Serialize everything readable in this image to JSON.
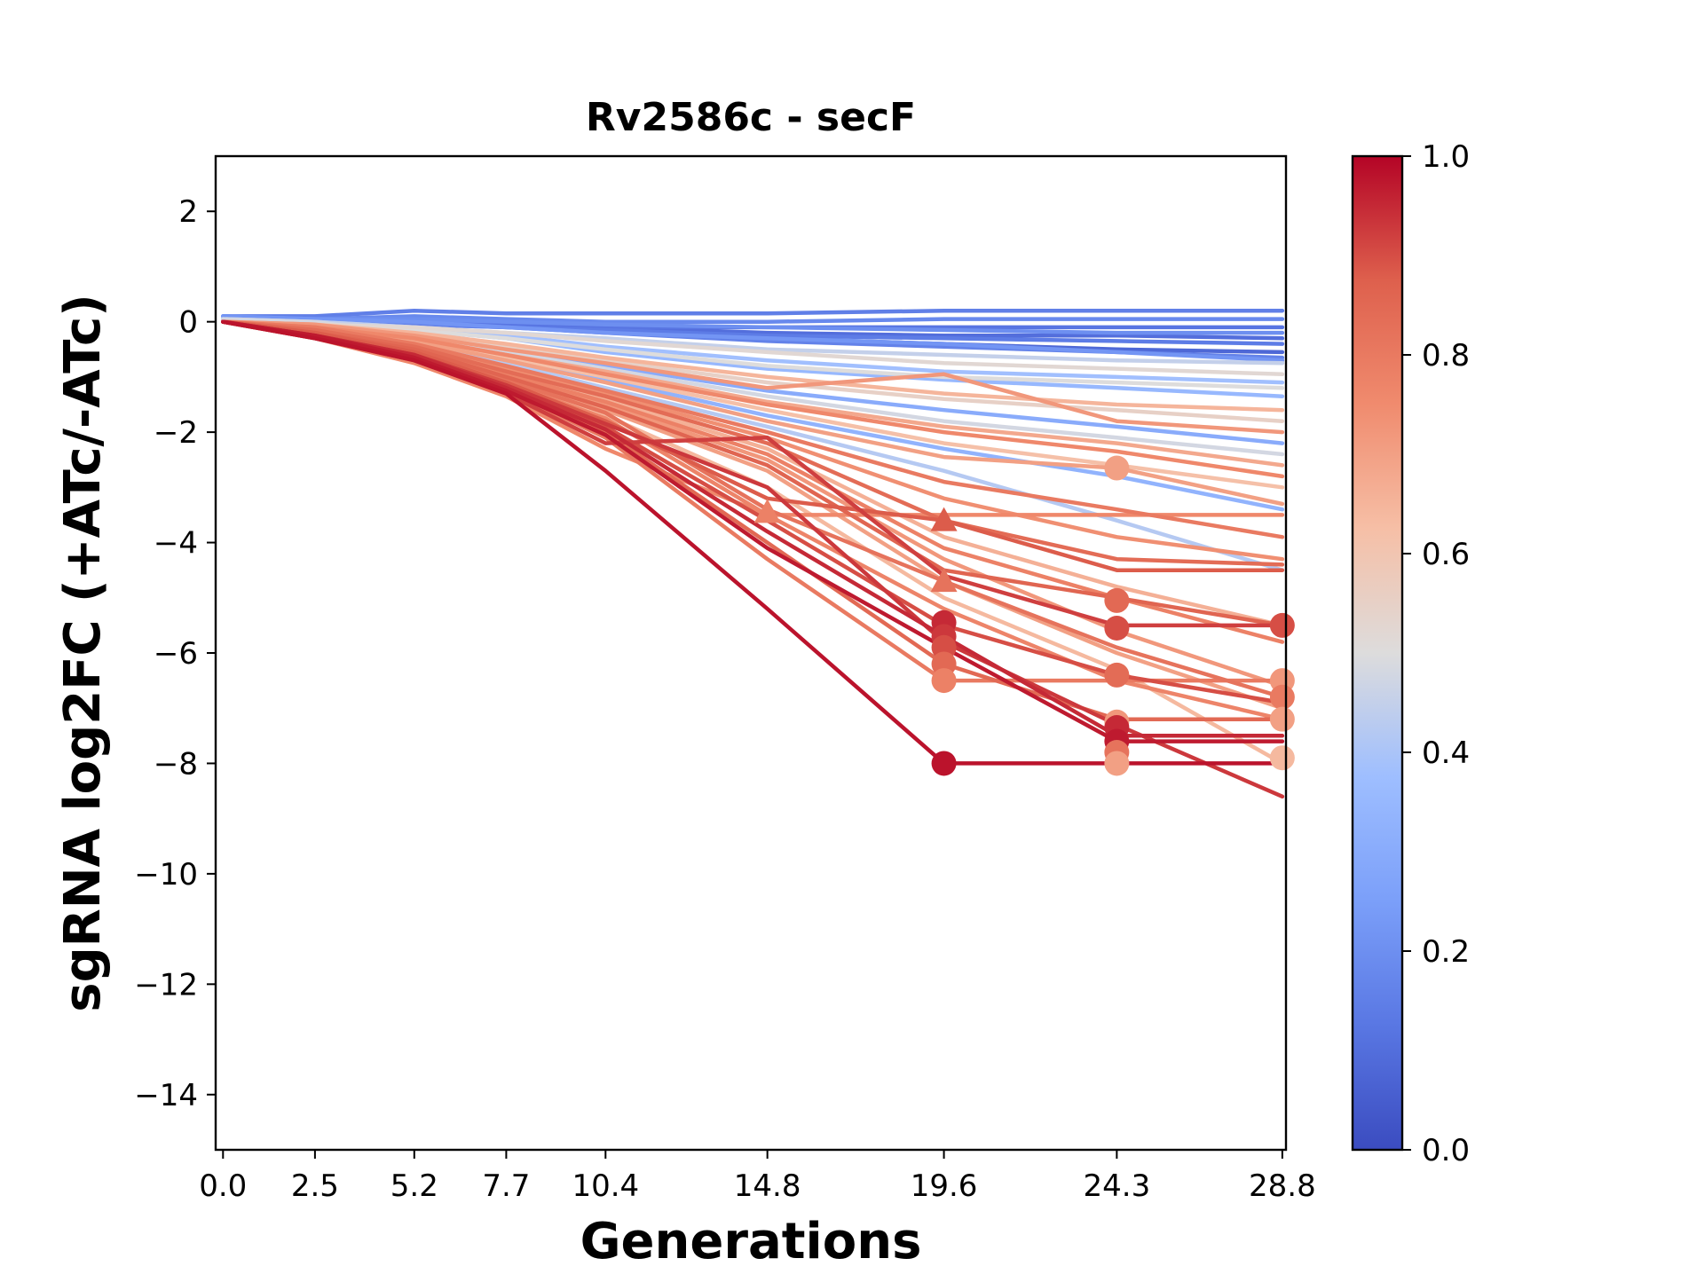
{
  "chart_data": {
    "type": "line",
    "title": "Rv2586c - secF",
    "xlabel": "Generations",
    "ylabel": "sgRNA log2FC (+ATc/-ATc)",
    "x_ticks": [
      0.0,
      2.5,
      5.2,
      7.7,
      10.4,
      14.8,
      19.6,
      24.3,
      28.8
    ],
    "x_tick_labels": [
      "0.0",
      "2.5",
      "5.2",
      "7.7",
      "10.4",
      "14.8",
      "19.6",
      "24.3",
      "28.8"
    ],
    "xlim": [
      -0.2,
      28.9
    ],
    "y_ticks": [
      2,
      0,
      -2,
      -4,
      -6,
      -8,
      -10,
      -12,
      -14
    ],
    "y_tick_labels": [
      "2",
      "0",
      "−2",
      "−4",
      "−6",
      "−8",
      "−10",
      "−12",
      "−14"
    ],
    "ylim": [
      -15,
      3
    ],
    "colormap": "coolwarm",
    "colorbar": {
      "range": [
        0,
        1
      ],
      "ticks": [
        0.0,
        0.2,
        0.4,
        0.6,
        0.8,
        1.0
      ],
      "tick_labels": [
        "0.0",
        "0.2",
        "0.4",
        "0.6",
        "0.8",
        "1.0"
      ]
    },
    "grid": false,
    "x_generations": [
      0.0,
      2.5,
      5.2,
      7.7,
      10.4,
      14.8,
      19.6,
      24.3,
      28.8
    ],
    "series": [
      {
        "c": 0.15,
        "y": [
          0.1,
          0.1,
          0.2,
          0.15,
          0.15,
          0.15,
          0.2,
          0.2,
          0.2
        ]
      },
      {
        "c": 0.18,
        "y": [
          0.05,
          0.05,
          0.1,
          0.05,
          0.0,
          0.0,
          0.05,
          0.05,
          0.05
        ]
      },
      {
        "c": 0.12,
        "y": [
          0.0,
          0.05,
          0.0,
          -0.05,
          -0.1,
          -0.1,
          -0.1,
          -0.1,
          -0.1
        ]
      },
      {
        "c": 0.2,
        "y": [
          0.1,
          0.05,
          0.05,
          0.0,
          -0.05,
          -0.1,
          -0.15,
          -0.2,
          -0.2
        ]
      },
      {
        "c": 0.1,
        "y": [
          0.05,
          0.0,
          0.0,
          -0.05,
          -0.1,
          -0.2,
          -0.25,
          -0.25,
          -0.3
        ]
      },
      {
        "c": 0.14,
        "y": [
          0.0,
          0.0,
          -0.05,
          -0.1,
          -0.15,
          -0.25,
          -0.3,
          -0.35,
          -0.4
        ]
      },
      {
        "c": 0.08,
        "y": [
          0.05,
          0.05,
          0.0,
          -0.05,
          -0.15,
          -0.3,
          -0.4,
          -0.5,
          -0.55
        ]
      },
      {
        "c": 0.16,
        "y": [
          0.0,
          -0.05,
          -0.05,
          -0.1,
          -0.2,
          -0.35,
          -0.45,
          -0.55,
          -0.65
        ]
      },
      {
        "c": 0.22,
        "y": [
          0.1,
          0.05,
          0.0,
          -0.1,
          -0.2,
          -0.3,
          -0.4,
          -0.55,
          -0.7
        ]
      },
      {
        "c": 0.45,
        "y": [
          0.0,
          0.0,
          -0.1,
          -0.2,
          -0.3,
          -0.5,
          -0.6,
          -0.7,
          -0.75
        ]
      },
      {
        "c": 0.52,
        "y": [
          0.0,
          -0.05,
          -0.1,
          -0.2,
          -0.35,
          -0.55,
          -0.75,
          -0.85,
          -0.95
        ]
      },
      {
        "c": 0.38,
        "y": [
          0.05,
          0.0,
          -0.1,
          -0.25,
          -0.45,
          -0.7,
          -0.9,
          -1.0,
          -1.1
        ]
      },
      {
        "c": 0.5,
        "y": [
          0.0,
          -0.05,
          -0.15,
          -0.3,
          -0.5,
          -0.8,
          -1.0,
          -1.1,
          -1.2
        ]
      },
      {
        "c": 0.35,
        "y": [
          0.05,
          0.0,
          -0.15,
          -0.3,
          -0.55,
          -0.85,
          -1.05,
          -1.2,
          -1.35
        ]
      },
      {
        "c": 0.65,
        "y": [
          0.0,
          -0.05,
          -0.2,
          -0.4,
          -0.65,
          -1.0,
          -1.3,
          -1.5,
          -1.6
        ]
      },
      {
        "c": 0.55,
        "y": [
          0.0,
          -0.1,
          -0.2,
          -0.45,
          -0.7,
          -1.1,
          -1.4,
          -1.6,
          -1.8
        ]
      },
      {
        "c": 0.72,
        "y": [
          0.0,
          -0.05,
          -0.25,
          -0.5,
          -0.75,
          -1.2,
          -0.95,
          -1.8,
          -2.0
        ]
      },
      {
        "c": 0.3,
        "y": [
          0.0,
          -0.05,
          -0.25,
          -0.5,
          -0.8,
          -1.25,
          -1.6,
          -1.9,
          -2.2
        ]
      },
      {
        "c": 0.48,
        "y": [
          0.05,
          0.0,
          -0.25,
          -0.55,
          -0.85,
          -1.35,
          -1.8,
          -2.1,
          -2.4
        ]
      },
      {
        "c": 0.68,
        "y": [
          0.0,
          -0.05,
          -0.3,
          -0.6,
          -0.9,
          -1.45,
          -1.9,
          -2.2,
          -2.6
        ]
      },
      {
        "c": 0.76,
        "y": [
          0.0,
          -0.1,
          -0.3,
          -0.6,
          -0.95,
          -1.5,
          -2.0,
          -2.35,
          -2.8
        ]
      },
      {
        "c": 0.62,
        "y": [
          0.0,
          -0.1,
          -0.3,
          -0.65,
          -1.0,
          -1.6,
          -2.2,
          -2.6,
          -3.0
        ]
      },
      {
        "c": 0.33,
        "y": [
          0.0,
          -0.1,
          -0.35,
          -0.7,
          -1.05,
          -1.7,
          -2.3,
          -2.8,
          -3.4
        ]
      },
      {
        "c": 0.7,
        "y": [
          0.0,
          -0.1,
          -0.35,
          -0.7,
          -1.1,
          -1.8,
          -2.45,
          -2.65,
          -3.3
        ]
      },
      {
        "c": 0.42,
        "y": [
          0.0,
          -0.1,
          -0.35,
          -0.75,
          -1.2,
          -1.9,
          -2.7,
          -3.6,
          -4.5
        ]
      },
      {
        "c": 0.8,
        "y": [
          0.0,
          -0.1,
          -0.4,
          -0.8,
          -1.25,
          -2.0,
          -2.9,
          -3.4,
          -3.9
        ]
      },
      {
        "c": 0.74,
        "y": [
          0.0,
          -0.15,
          -0.4,
          -0.85,
          -1.3,
          -2.1,
          -3.2,
          -3.9,
          -4.3
        ]
      },
      {
        "c": 0.84,
        "y": [
          0.0,
          -0.15,
          -0.45,
          -0.9,
          -1.35,
          -2.2,
          -3.6,
          -4.3,
          -4.4
        ]
      },
      {
        "c": 0.66,
        "y": [
          0.0,
          -0.15,
          -0.45,
          -0.9,
          -1.4,
          -2.3,
          -3.9,
          -4.8,
          -5.5
        ]
      },
      {
        "c": 0.78,
        "y": [
          0.0,
          -0.15,
          -0.45,
          -0.95,
          -1.45,
          -2.4,
          -4.1,
          -5.0,
          -5.8
        ]
      },
      {
        "c": 0.72,
        "y": [
          0.0,
          -0.15,
          -0.5,
          -0.95,
          -1.5,
          -2.5,
          -4.3,
          -5.6,
          -6.6
        ]
      },
      {
        "c": 0.86,
        "y": [
          0.0,
          -0.2,
          -0.5,
          -1.0,
          -1.55,
          -2.6,
          -4.5,
          -5.0,
          -5.5
        ]
      },
      {
        "c": 0.7,
        "y": [
          0.0,
          -0.2,
          -0.5,
          -1.0,
          -1.6,
          -2.7,
          -4.7,
          -6.0,
          -7.0
        ]
      },
      {
        "c": 0.82,
        "y": [
          0.0,
          -0.2,
          -0.5,
          -1.05,
          -1.65,
          -3.4,
          -4.7,
          -5.9,
          -6.8
        ]
      },
      {
        "c": 0.64,
        "y": [
          0.0,
          -0.2,
          -0.55,
          -1.05,
          -1.7,
          -3.0,
          -5.0,
          -6.3,
          -8.0
        ]
      },
      {
        "c": 0.77,
        "y": [
          0.0,
          -0.2,
          -0.55,
          -1.1,
          -1.75,
          -3.5,
          -5.2,
          -6.5,
          -7.2
        ]
      },
      {
        "c": 0.88,
        "y": [
          0.0,
          -0.2,
          -0.55,
          -1.1,
          -1.8,
          -3.2,
          -3.6,
          -4.5,
          -4.5
        ]
      },
      {
        "c": 0.93,
        "y": [
          0.0,
          -0.25,
          -0.6,
          -1.15,
          -1.85,
          -3.0,
          -5.8,
          -7.3,
          -8.6
        ]
      },
      {
        "c": 0.9,
        "y": [
          0.0,
          -0.25,
          -0.6,
          -1.15,
          -1.9,
          -3.6,
          -5.5,
          -6.4,
          -6.9
        ]
      },
      {
        "c": 0.95,
        "y": [
          0.0,
          -0.25,
          -0.6,
          -1.2,
          -1.95,
          -3.8,
          -5.7,
          -7.5,
          -7.5
        ]
      },
      {
        "c": 0.85,
        "y": [
          0.0,
          -0.25,
          -0.65,
          -1.2,
          -2.0,
          -4.0,
          -6.2,
          -7.2,
          -7.2
        ]
      },
      {
        "c": 0.97,
        "y": [
          0.0,
          -0.25,
          -0.65,
          -1.25,
          -2.05,
          -4.1,
          -5.9,
          -7.6,
          -7.6
        ]
      },
      {
        "c": 0.8,
        "y": [
          0.0,
          -0.3,
          -0.7,
          -1.25,
          -2.1,
          -4.3,
          -6.5,
          -6.5,
          -6.5
        ]
      },
      {
        "c": 0.92,
        "y": [
          0.0,
          -0.3,
          -0.7,
          -1.3,
          -2.2,
          -2.1,
          -4.6,
          -5.5,
          -5.5
        ]
      },
      {
        "c": 0.98,
        "y": [
          0.0,
          -0.3,
          -0.7,
          -1.3,
          -2.7,
          -5.2,
          -8.0,
          -8.0,
          -8.0
        ]
      },
      {
        "c": 0.76,
        "y": [
          0.0,
          -0.3,
          -0.75,
          -1.35,
          -2.3,
          -3.5,
          -3.5,
          -3.5,
          -3.5
        ]
      }
    ],
    "end_markers": [
      {
        "x": 14.8,
        "y": -3.45,
        "c": 0.78,
        "shape": "triangle"
      },
      {
        "x": 19.6,
        "y": -3.6,
        "c": 0.88,
        "shape": "triangle"
      },
      {
        "x": 19.6,
        "y": -4.7,
        "c": 0.82,
        "shape": "triangle"
      },
      {
        "x": 19.6,
        "y": -5.45,
        "c": 0.95,
        "shape": "circle"
      },
      {
        "x": 19.6,
        "y": -5.7,
        "c": 0.93,
        "shape": "circle"
      },
      {
        "x": 19.6,
        "y": -5.9,
        "c": 0.9,
        "shape": "circle"
      },
      {
        "x": 19.6,
        "y": -6.2,
        "c": 0.85,
        "shape": "circle"
      },
      {
        "x": 19.6,
        "y": -6.5,
        "c": 0.78,
        "shape": "circle"
      },
      {
        "x": 19.6,
        "y": -8.0,
        "c": 0.98,
        "shape": "circle"
      },
      {
        "x": 24.3,
        "y": -2.65,
        "c": 0.7,
        "shape": "circle"
      },
      {
        "x": 24.3,
        "y": -5.05,
        "c": 0.85,
        "shape": "circle"
      },
      {
        "x": 24.3,
        "y": -5.55,
        "c": 0.9,
        "shape": "circle"
      },
      {
        "x": 24.3,
        "y": -6.4,
        "c": 0.84,
        "shape": "circle"
      },
      {
        "x": 24.3,
        "y": -7.25,
        "c": 0.72,
        "shape": "circle"
      },
      {
        "x": 24.3,
        "y": -7.35,
        "c": 0.95,
        "shape": "circle"
      },
      {
        "x": 24.3,
        "y": -7.6,
        "c": 0.97,
        "shape": "circle"
      },
      {
        "x": 24.3,
        "y": -7.8,
        "c": 0.82,
        "shape": "circle"
      },
      {
        "x": 24.3,
        "y": -8.0,
        "c": 0.7,
        "shape": "circle"
      },
      {
        "x": 28.8,
        "y": -5.5,
        "c": 0.9,
        "shape": "circle"
      },
      {
        "x": 28.8,
        "y": -6.5,
        "c": 0.72,
        "shape": "circle"
      },
      {
        "x": 28.8,
        "y": -6.8,
        "c": 0.8,
        "shape": "circle"
      },
      {
        "x": 28.8,
        "y": -7.2,
        "c": 0.7,
        "shape": "circle"
      },
      {
        "x": 28.8,
        "y": -7.9,
        "c": 0.64,
        "shape": "circle"
      }
    ]
  }
}
